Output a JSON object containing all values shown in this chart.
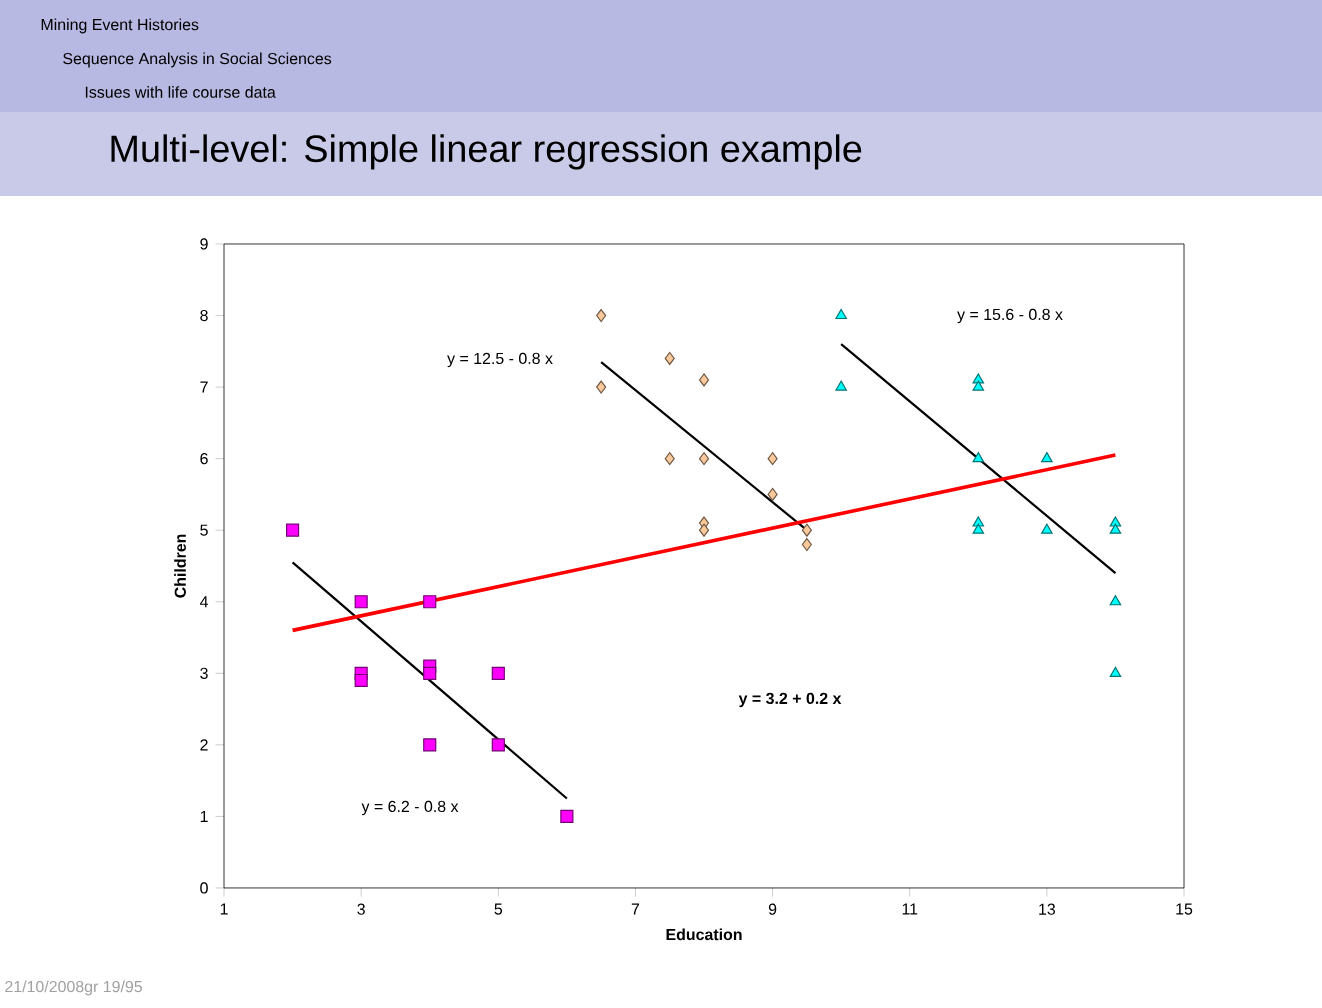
{
  "chart_data": {
    "type": "scatter",
    "title": "Multi-level: Simple linear regression example",
    "xlabel": "Education",
    "ylabel": "Children",
    "xlim": [
      1,
      15
    ],
    "xticks": [
      1,
      3,
      5,
      7,
      9,
      11,
      13,
      15
    ],
    "ylim": [
      0,
      9
    ],
    "yticks": [
      0,
      1,
      2,
      3,
      4,
      5,
      6,
      7,
      8,
      9
    ],
    "series": [
      {
        "marker": "square",
        "color": "#ff00ff",
        "x": [
          2,
          3,
          3,
          3,
          4,
          4,
          4,
          4,
          5,
          5,
          6
        ],
        "values": [
          5,
          4,
          3,
          2.9,
          4,
          3.1,
          3,
          2,
          3,
          2,
          1
        ]
      },
      {
        "marker": "diamond",
        "color": "#f9c89b",
        "x": [
          6.5,
          6.5,
          7.5,
          7.5,
          8,
          8,
          8,
          8,
          9,
          9,
          9.5,
          9.5
        ],
        "values": [
          8,
          7,
          7.4,
          6,
          7.1,
          6,
          5.1,
          5,
          6,
          5.5,
          5,
          4.8
        ]
      },
      {
        "marker": "triangle",
        "color": "#00ffff",
        "x": [
          10,
          10,
          12,
          12,
          12,
          12,
          12,
          13,
          13,
          14,
          14,
          14,
          14
        ],
        "values": [
          8,
          7,
          7.1,
          7,
          6,
          5.1,
          5,
          6,
          5,
          5.1,
          5,
          4,
          3
        ]
      },
      {
        "type": "line",
        "color": "#000000",
        "x": [
          2,
          6
        ],
        "values": [
          4.55,
          1.25
        ]
      },
      {
        "type": "line",
        "color": "#000000",
        "x": [
          6.5,
          9.5
        ],
        "values": [
          7.35,
          5.0
        ]
      },
      {
        "type": "line",
        "color": "#000000",
        "x": [
          10,
          14
        ],
        "values": [
          7.6,
          4.4
        ]
      },
      {
        "type": "line",
        "color": "#ff0000",
        "x": [
          2,
          14
        ],
        "values": [
          3.6,
          6.05
        ]
      }
    ],
    "annotations": [
      "Mining Event Histories",
      "Sequence Analysis in Social Sciences",
      "Issues with life course data",
      "21/10/2008gr 19/95",
      "y = 6.2 - 0.8 x",
      "y = 12.5 - 0.8 x",
      "y = 15.6 - 0.8 x",
      "**y = 3.2 + 0.2 x**"
    ]
  }
}
